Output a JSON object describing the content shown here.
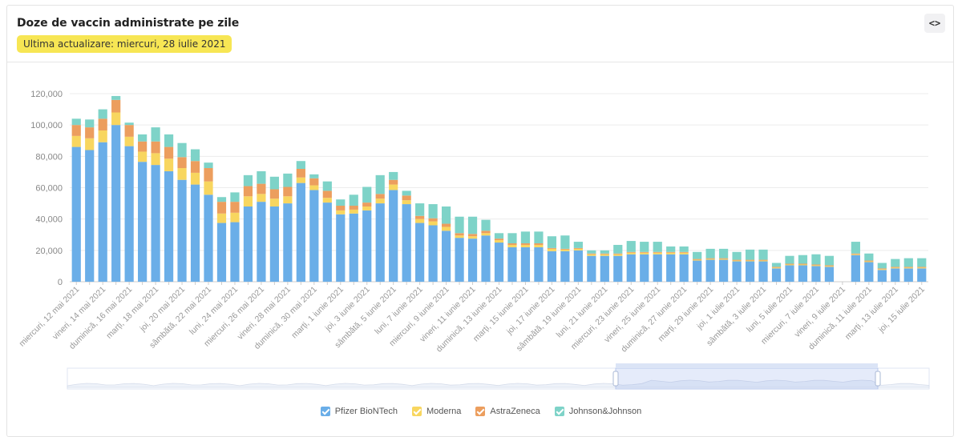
{
  "header": {
    "title": "Doze de vaccin administrate pe zile",
    "last_update": "Ultima actualizare: miercuri, 28 iulie 2021",
    "embed_label": "<>"
  },
  "colors": {
    "pfizer": "#6aaee8",
    "moderna": "#f8d65f",
    "astrazeneca": "#ec9e5e",
    "jj": "#7ed3c8"
  },
  "chart_data": {
    "type": "bar",
    "stacked": true,
    "ylim": [
      0,
      120000
    ],
    "yticks": [
      "0",
      "20,000",
      "40,000",
      "60,000",
      "80,000",
      "100,000",
      "120,000"
    ],
    "grid": true,
    "legend_position": "bottom",
    "x": [
      "12 mai",
      "13 mai",
      "14 mai",
      "15 mai",
      "16 mai",
      "17 mai",
      "18 mai",
      "19 mai",
      "20 mai",
      "21 mai",
      "22 mai",
      "23 mai",
      "24 mai",
      "25 mai",
      "26 mai",
      "27 mai",
      "28 mai",
      "29 mai",
      "30 mai",
      "31 mai",
      "1 iunie",
      "2 iunie",
      "3 iunie",
      "4 iunie",
      "5 iunie",
      "6 iunie",
      "7 iunie",
      "8 iunie",
      "9 iunie",
      "10 iunie",
      "11 iunie",
      "12 iunie",
      "13 iunie",
      "14 iunie",
      "15 iunie",
      "16 iunie",
      "17 iunie",
      "18 iunie",
      "19 iunie",
      "20 iunie",
      "21 iunie",
      "22 iunie",
      "23 iunie",
      "24 iunie",
      "25 iunie",
      "26 iunie",
      "27 iunie",
      "28 iunie",
      "29 iunie",
      "30 iunie",
      "1 iulie",
      "2 iulie",
      "3 iulie",
      "4 iulie",
      "5 iulie",
      "6 iulie",
      "7 iulie",
      "8 iulie",
      "9 iulie",
      "10 iulie",
      "11 iulie",
      "12 iulie",
      "13 iulie",
      "14 iulie",
      "15 iulie"
    ],
    "xtick_labels": [
      "miercuri, 12 mai 2021",
      "vineri, 14 mai 2021",
      "duminică, 16 mai 2021",
      "marți, 18 mai 2021",
      "joi, 20 mai 2021",
      "sâmbătă, 22 mai 2021",
      "luni, 24 mai 2021",
      "miercuri, 26 mai 2021",
      "vineri, 28 mai 2021",
      "duminică, 30 mai 2021",
      "marți, 1 iunie 2021",
      "joi, 3 iunie 2021",
      "sâmbătă, 5 iunie 2021",
      "luni, 7 iunie 2021",
      "miercuri, 9 iunie 2021",
      "vineri, 11 iunie 2021",
      "duminică, 13 iunie 2021",
      "marți, 15 iunie 2021",
      "joi, 17 iunie 2021",
      "sâmbătă, 19 iunie 2021",
      "luni, 21 iunie 2021",
      "miercuri, 23 iunie 2021",
      "vineri, 25 iunie 2021",
      "duminică, 27 iunie 2021",
      "marți, 29 iunie 2021",
      "joi, 1 iulie 2021",
      "sâmbătă, 3 iulie 2021",
      "luni, 5 iulie 2021",
      "miercuri, 7 iulie 2021",
      "vineri, 9 iulie 2021",
      "duminică, 11 iulie 2021",
      "marți, 13 iulie 2021",
      "joi, 15 iulie 2021"
    ],
    "series": [
      {
        "name": "Pfizer BioNTech",
        "color": "#6aaee8",
        "values": [
          86000,
          84000,
          89000,
          100000,
          86500,
          76500,
          74500,
          70500,
          65000,
          62000,
          55500,
          37500,
          38000,
          48000,
          51000,
          48000,
          50000,
          63000,
          58500,
          50500,
          43000,
          43500,
          45500,
          50000,
          58500,
          49500,
          37500,
          36000,
          32500,
          28000,
          27500,
          29500,
          25000,
          22000,
          22000,
          22000,
          19500,
          19500,
          20000,
          16500,
          16500,
          16500,
          17500,
          17500,
          17500,
          17500,
          17500,
          13500,
          14000,
          14000,
          13000,
          13000,
          13000,
          8500,
          10500,
          10500,
          10000,
          9500,
          0,
          17000,
          12500,
          7500,
          8500,
          8500,
          8500
        ]
      },
      {
        "name": "Moderna",
        "color": "#f8d65f",
        "values": [
          7000,
          7500,
          7500,
          8000,
          6000,
          6500,
          7500,
          8000,
          7500,
          7500,
          8500,
          6000,
          6000,
          6500,
          5000,
          5000,
          4500,
          3500,
          3000,
          3000,
          2500,
          2500,
          2500,
          3000,
          3500,
          2500,
          2500,
          2500,
          2500,
          1500,
          1500,
          1500,
          1500,
          1500,
          1500,
          1500,
          1500,
          1000,
          1000,
          1000,
          1000,
          1000,
          1000,
          1000,
          1000,
          1000,
          1000,
          500,
          500,
          500,
          500,
          500,
          500,
          500,
          500,
          500,
          500,
          500,
          0,
          500,
          500,
          500,
          500,
          500,
          500
        ]
      },
      {
        "name": "AstraZeneca",
        "color": "#ec9e5e",
        "values": [
          7000,
          7000,
          7500,
          8000,
          7500,
          6500,
          7500,
          7500,
          7000,
          7500,
          8500,
          7500,
          7000,
          6500,
          6500,
          6000,
          6000,
          5500,
          4500,
          4500,
          3000,
          2500,
          2500,
          3000,
          3000,
          3000,
          2000,
          2000,
          2000,
          1500,
          1500,
          1500,
          1000,
          1000,
          1000,
          1000,
          500,
          500,
          500,
          500,
          500,
          500,
          500,
          500,
          500,
          500,
          500,
          500,
          500,
          500,
          500,
          500,
          500,
          500,
          500,
          500,
          500,
          500,
          0,
          500,
          500,
          500,
          500,
          500,
          500
        ]
      },
      {
        "name": "Johnson&Johnson",
        "color": "#7ed3c8",
        "values": [
          4000,
          5000,
          6000,
          2500,
          1500,
          4500,
          9000,
          8000,
          9000,
          7500,
          3500,
          3000,
          6000,
          7000,
          8000,
          8000,
          8500,
          5000,
          2500,
          6000,
          4000,
          7000,
          10000,
          12000,
          5000,
          3000,
          8000,
          9000,
          11000,
          10500,
          11000,
          7000,
          3500,
          6500,
          7500,
          7500,
          7500,
          8500,
          4000,
          2000,
          2000,
          5500,
          7000,
          6500,
          6500,
          3500,
          3500,
          4500,
          6000,
          6000,
          5000,
          6500,
          6500,
          2500,
          5000,
          5500,
          6500,
          6000,
          0,
          7500,
          4500,
          3500,
          5000,
          5500,
          5500
        ]
      }
    ]
  }
}
